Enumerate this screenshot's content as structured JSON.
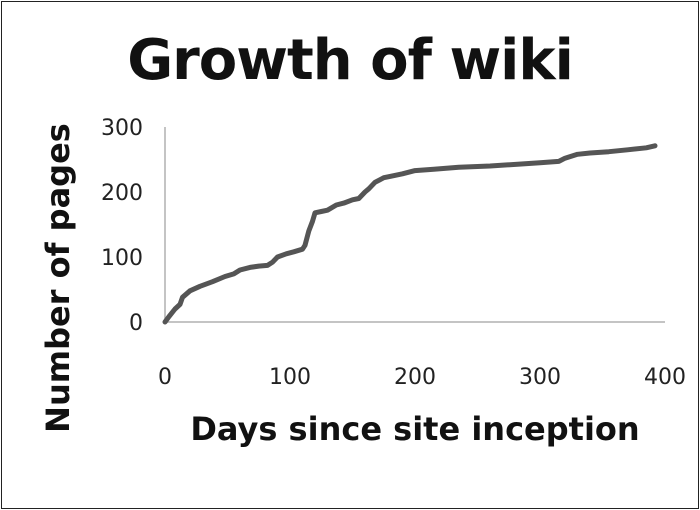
{
  "chart_data": {
    "type": "line",
    "title": "Growth of wiki",
    "xlabel": "Days since site inception",
    "ylabel": "Number of pages",
    "xlim": [
      0,
      400
    ],
    "ylim": [
      0,
      300
    ],
    "xticks": [
      "0",
      "100",
      "200",
      "300",
      "400"
    ],
    "yticks": [
      "0",
      "100",
      "200",
      "300"
    ],
    "grid": false,
    "legend": "none",
    "line_color": "#555555",
    "series": [
      {
        "x": [
          0,
          3,
          8,
          12,
          14,
          20,
          28,
          38,
          48,
          55,
          60,
          68,
          75,
          82,
          86,
          90,
          97,
          103,
          110,
          112,
          115,
          118,
          120,
          125,
          130,
          137,
          143,
          150,
          155,
          160,
          163,
          168,
          175,
          180,
          190,
          200,
          215,
          235,
          260,
          285,
          300,
          315,
          320,
          330,
          340,
          355,
          370,
          385,
          392
        ],
        "y": [
          0,
          8,
          20,
          27,
          38,
          48,
          55,
          62,
          70,
          74,
          80,
          84,
          86,
          87,
          92,
          100,
          105,
          108,
          112,
          118,
          140,
          155,
          168,
          170,
          172,
          180,
          183,
          188,
          190,
          200,
          205,
          215,
          222,
          224,
          228,
          233,
          235,
          238,
          240,
          243,
          245,
          247,
          252,
          258,
          260,
          262,
          265,
          268,
          271
        ]
      }
    ]
  }
}
